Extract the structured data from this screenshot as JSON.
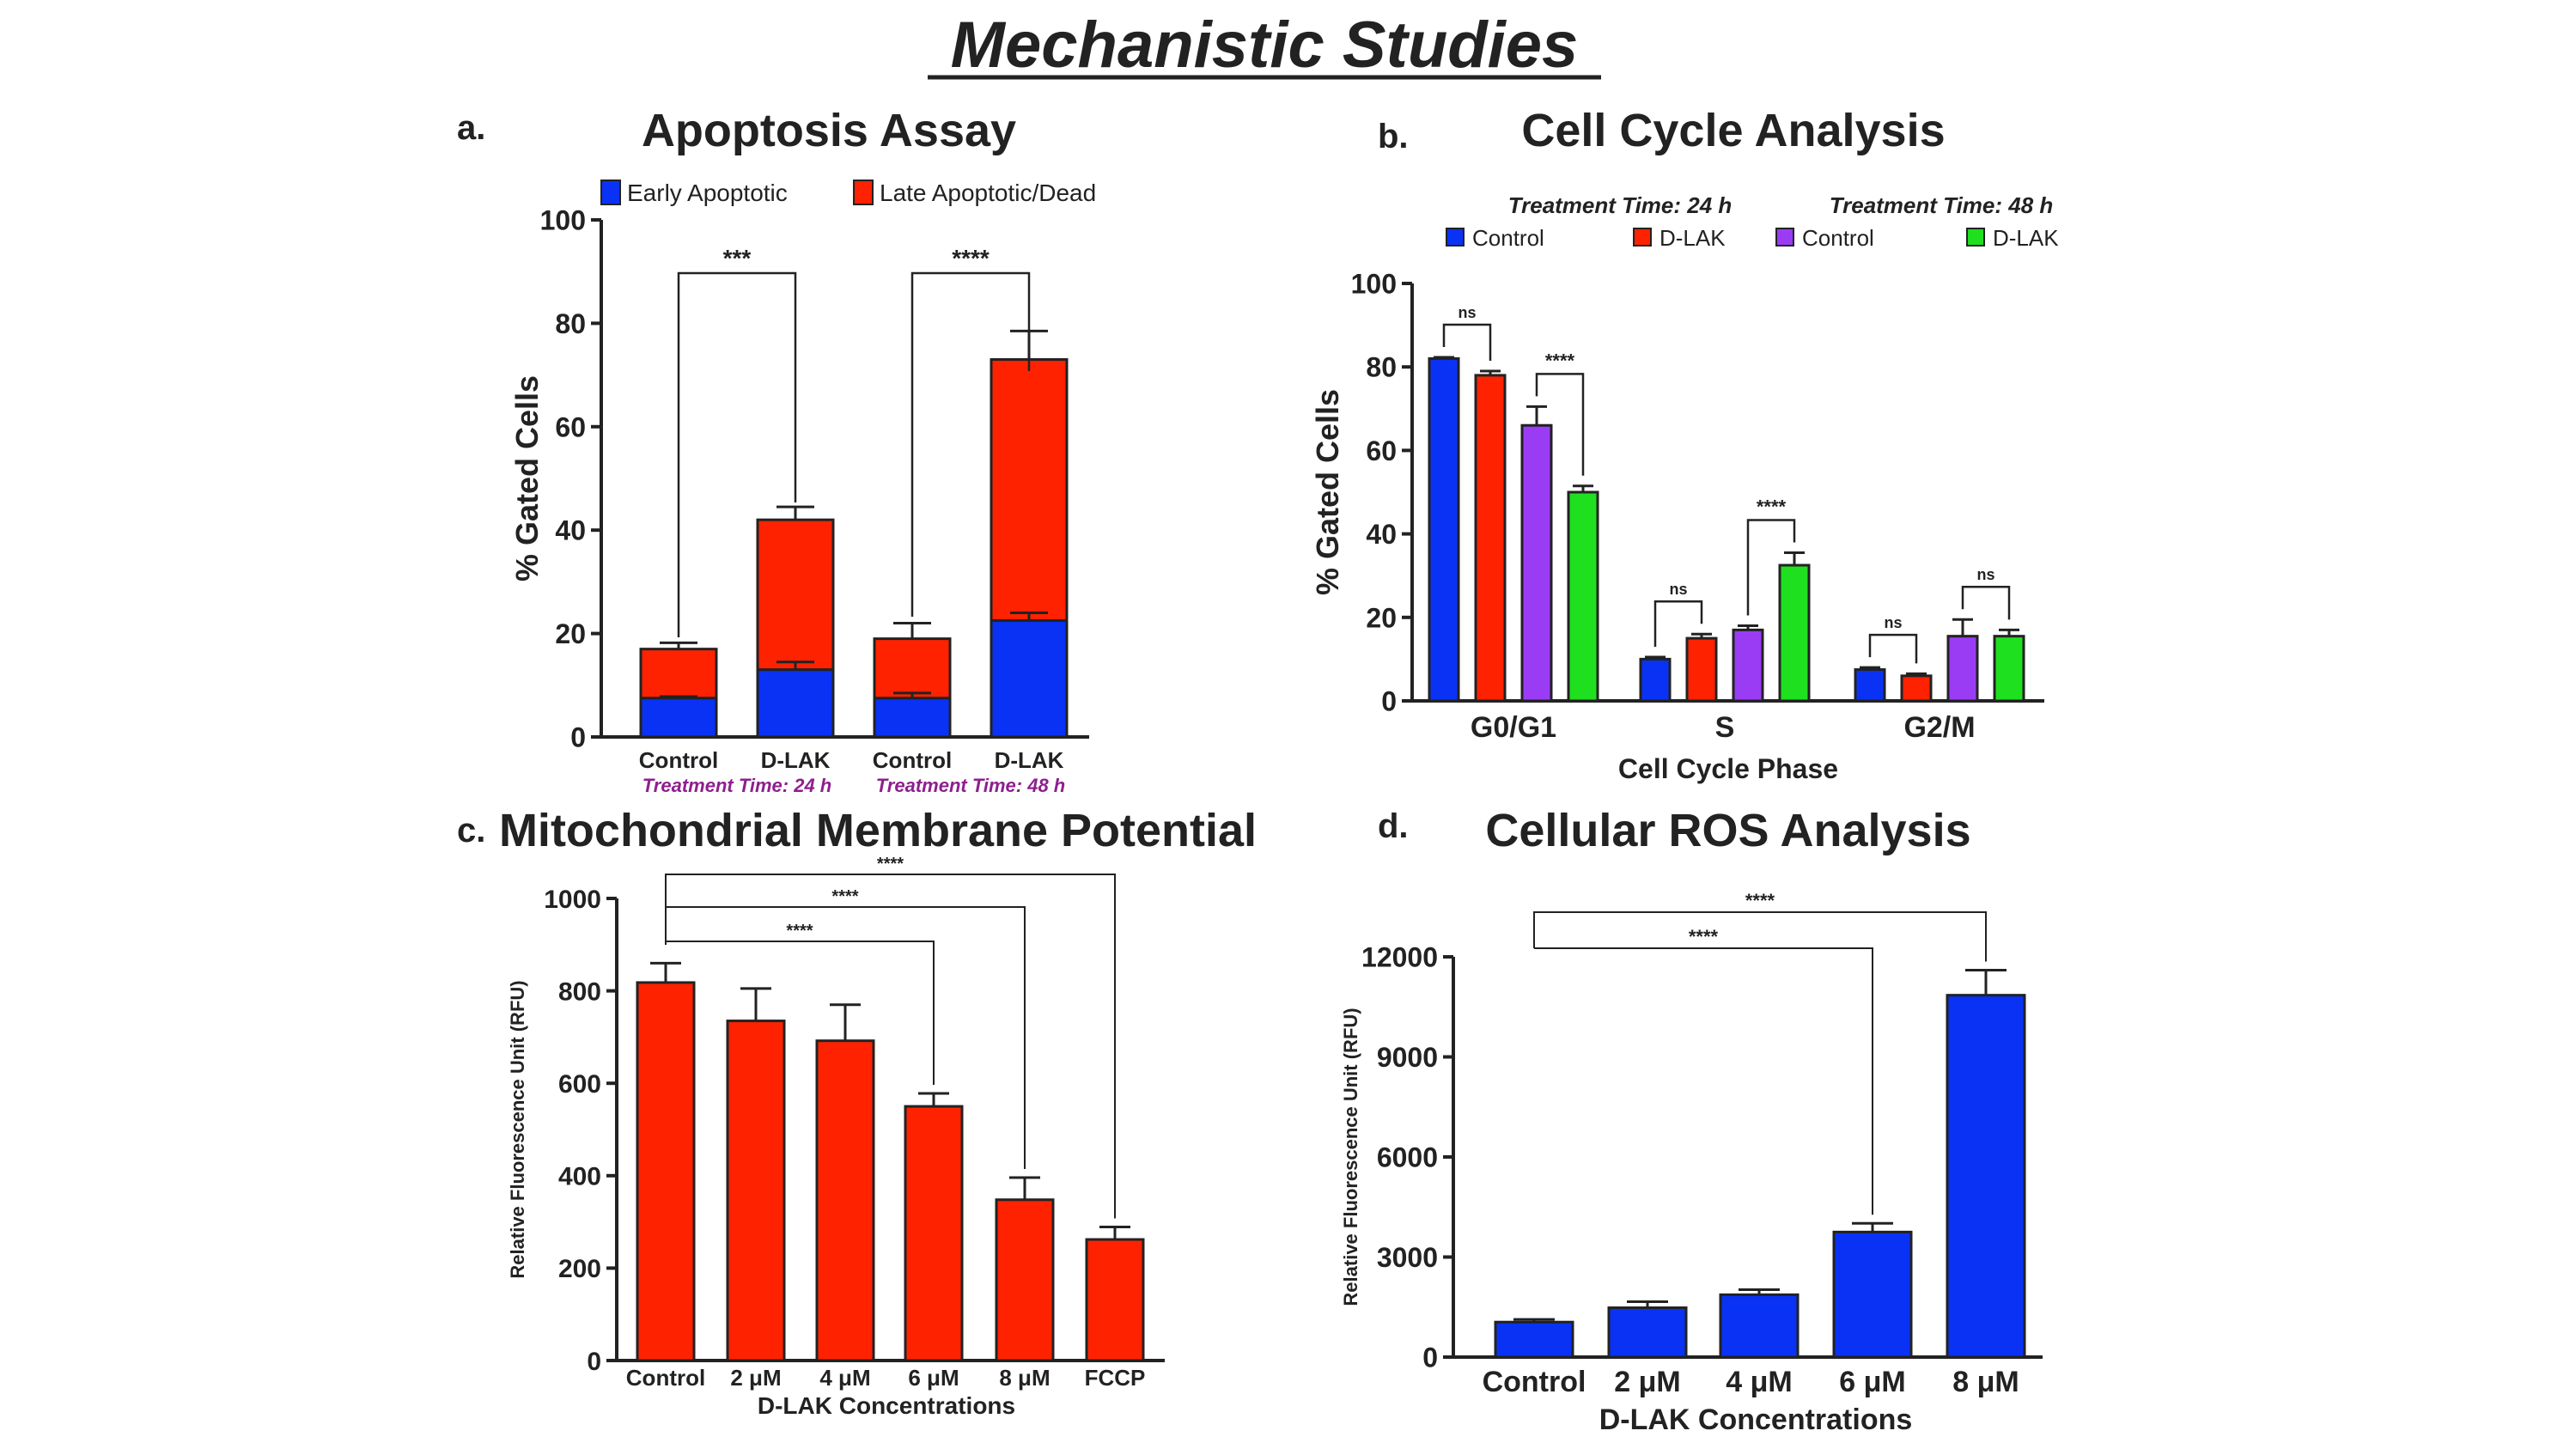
{
  "page": {
    "title": "Mechanistic Studies"
  },
  "colors": {
    "blue": "#0a32f5",
    "red": "#ff2200",
    "purple": "#9b3cf5",
    "green": "#1fe01f",
    "magenta_note": "#8e1f8e",
    "text": "#222222"
  },
  "panels": [
    {
      "letter": "a.",
      "chart_data": {
        "type": "bar",
        "stacked": true,
        "title": "Apoptosis Assay",
        "ylabel": "% Gated Cells",
        "xlabel": "",
        "ylim": [
          0,
          100
        ],
        "yticks": [
          "0",
          "20",
          "40",
          "60",
          "80",
          "100"
        ],
        "categories": [
          "Control",
          "D-LAK",
          "Control",
          "D-LAK"
        ],
        "group_notes": [
          "Treatment Time: 24 h",
          "Treatment Time: 48 h"
        ],
        "legend_position": "top",
        "series": [
          {
            "name": "Early Apoptotic",
            "color": "blue",
            "values": [
              7.5,
              13,
              7.5,
              22.5
            ],
            "errors": [
              0.3,
              1.5,
              1.0,
              1.5
            ]
          },
          {
            "name": "Late Apoptotic/Dead",
            "color": "red",
            "values": [
              9.5,
              29,
              11.5,
              50.5
            ],
            "errors": [
              1.2,
              2.5,
              3.0,
              5.5
            ]
          }
        ],
        "significance": [
          {
            "from": 0,
            "to": 1,
            "label": "***"
          },
          {
            "from": 2,
            "to": 3,
            "label": "****"
          }
        ]
      }
    },
    {
      "letter": "b.",
      "chart_data": {
        "type": "bar",
        "title": "Cell Cycle Analysis",
        "ylabel": "% Gated Cells",
        "xlabel": "Cell Cycle Phase",
        "ylim": [
          0,
          100
        ],
        "yticks": [
          "0",
          "20",
          "40",
          "60",
          "80",
          "100"
        ],
        "categories": [
          "G0/G1",
          "S",
          "G2/M"
        ],
        "legend_groups": [
          "Treatment Time: 24 h",
          "Treatment Time: 48 h"
        ],
        "legend_position": "top",
        "series": [
          {
            "name": "Control",
            "color": "blue",
            "values": [
              82,
              10,
              7.5
            ],
            "errors": [
              0.3,
              0.5,
              0.5
            ]
          },
          {
            "name": "D-LAK",
            "color": "red",
            "values": [
              78,
              15,
              6
            ],
            "errors": [
              1.0,
              1.0,
              0.5
            ]
          },
          {
            "name": "Control",
            "color": "purple",
            "values": [
              66,
              17,
              15.5
            ],
            "errors": [
              4.5,
              1.0,
              4.0
            ]
          },
          {
            "name": "D-LAK",
            "color": "green",
            "values": [
              50,
              32.5,
              15.5
            ],
            "errors": [
              1.5,
              3.0,
              1.5
            ]
          }
        ],
        "significance": [
          {
            "category": 0,
            "from": 0,
            "to": 1,
            "label": "ns"
          },
          {
            "category": 0,
            "from": 2,
            "to": 3,
            "label": "****"
          },
          {
            "category": 1,
            "from": 0,
            "to": 1,
            "label": "ns"
          },
          {
            "category": 1,
            "from": 2,
            "to": 3,
            "label": "****"
          },
          {
            "category": 2,
            "from": 0,
            "to": 1,
            "label": "ns"
          },
          {
            "category": 2,
            "from": 2,
            "to": 3,
            "label": "ns"
          }
        ]
      }
    },
    {
      "letter": "c.",
      "chart_data": {
        "type": "bar",
        "title": "Mitochondrial Membrane Potential",
        "ylabel": "Relative Fluorescence Unit (RFU)",
        "xlabel": "D-LAK Concentrations",
        "ylim": [
          0,
          1000
        ],
        "yticks": [
          "0",
          "200",
          "400",
          "600",
          "800",
          "1000"
        ],
        "categories": [
          "Control",
          "2 μM",
          "4 μM",
          "6 μM",
          "8 μM",
          "FCCP"
        ],
        "series": [
          {
            "name": "",
            "color": "red",
            "values": [
              818,
              735,
              692,
              550,
              348,
              262
            ],
            "errors": [
              42,
              70,
              78,
              28,
              48,
              27
            ]
          }
        ],
        "significance": [
          {
            "from": 0,
            "to": 3,
            "label": "****"
          },
          {
            "from": 0,
            "to": 4,
            "label": "****"
          },
          {
            "from": 0,
            "to": 5,
            "label": "****"
          }
        ]
      }
    },
    {
      "letter": "d.",
      "chart_data": {
        "type": "bar",
        "title": "Cellular ROS Analysis",
        "ylabel": "Relative Fluorescence Unit (RFU)",
        "xlabel": "D-LAK Concentrations",
        "ylim": [
          0,
          12000
        ],
        "yticks": [
          "0",
          "3000",
          "6000",
          "9000",
          "12000"
        ],
        "categories": [
          "Control",
          "2 μM",
          "4 μM",
          "6 μM",
          "8 μM"
        ],
        "series": [
          {
            "name": "",
            "color": "blue",
            "values": [
              1050,
              1480,
              1870,
              3750,
              10850
            ],
            "errors": [
              80,
              180,
              150,
              260,
              750
            ]
          }
        ],
        "significance": [
          {
            "from": 0,
            "to": 3,
            "label": "****"
          },
          {
            "from": 0,
            "to": 4,
            "label": "****"
          }
        ]
      }
    }
  ]
}
